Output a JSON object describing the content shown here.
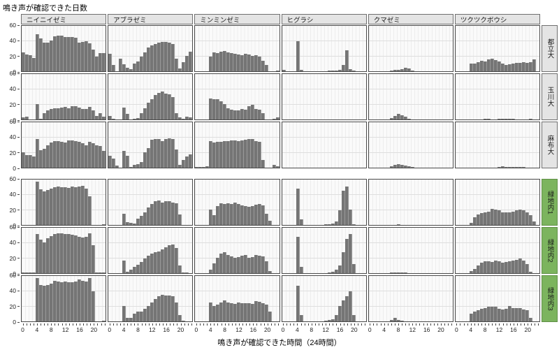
{
  "title": "鳴き声が確認できた日数",
  "x_axis_label": "鳴き声が確認できた時間（24時間）",
  "colors": {
    "bar": "#757575",
    "strip_gray": "#e4e4e4",
    "strip_green": "#7cb45e",
    "panel_bg": "#fafafa",
    "panel_border": "#4a4a4a"
  },
  "chart_data": {
    "type": "bar",
    "description": "Faceted histograms: days each cicada species' call was confirmed, per hour of day (24 hourly bins), at 6 sites",
    "facet_cols": [
      "ニイニイゼミ",
      "アブラゼミ",
      "ミンミンゼミ",
      "ヒグラシ",
      "クマゼミ",
      "ツクツクボウシ"
    ],
    "facet_rows": [
      {
        "label": "都立大",
        "group": "campus"
      },
      {
        "label": "玉川大",
        "group": "campus"
      },
      {
        "label": "麻布大",
        "group": "campus"
      },
      {
        "label": "緑地内1",
        "group": "greenspace"
      },
      {
        "label": "緑地内2",
        "group": "greenspace"
      },
      {
        "label": "緑地内3",
        "group": "greenspace"
      }
    ],
    "x_bins": 24,
    "x_ticks": [
      0,
      4,
      8,
      12,
      16,
      20
    ],
    "y_ticks": [
      60,
      40,
      20,
      0
    ],
    "ylim": [
      0,
      60
    ],
    "values": [
      [
        [
          25,
          22,
          21,
          18,
          49,
          43,
          38,
          38,
          41,
          46,
          47,
          47,
          45,
          45,
          45,
          44,
          38,
          39,
          40,
          37,
          29,
          19,
          24,
          24
        ],
        [
          23,
          8,
          0,
          17,
          9,
          5,
          3,
          10,
          13,
          19,
          25,
          31,
          34,
          36,
          38,
          39,
          39,
          38,
          36,
          17,
          4,
          12,
          20,
          26
        ],
        [
          0,
          0,
          0,
          0,
          19,
          25,
          24,
          26,
          27,
          25,
          24,
          23,
          22,
          21,
          23,
          22,
          20,
          21,
          19,
          14,
          8,
          0,
          0,
          1
        ],
        [
          2,
          0,
          0,
          0,
          40,
          2,
          0,
          0,
          0,
          0,
          0,
          0,
          0,
          1,
          1,
          1,
          2,
          8,
          28,
          3,
          1,
          0,
          0,
          0
        ],
        [
          0,
          0,
          0,
          0,
          0,
          0,
          1,
          2,
          2,
          3,
          5,
          4,
          1,
          0,
          0,
          0,
          0,
          0,
          0,
          0,
          0,
          0,
          0,
          0
        ],
        [
          0,
          0,
          0,
          0,
          10,
          10,
          12,
          14,
          13,
          16,
          17,
          15,
          13,
          10,
          8,
          9,
          10,
          11,
          11,
          12,
          11,
          12,
          16,
          0
        ]
      ],
      [
        [
          3,
          4,
          0,
          0,
          20,
          1,
          8,
          12,
          14,
          15,
          15,
          16,
          17,
          15,
          18,
          18,
          16,
          14,
          14,
          17,
          12,
          5,
          8,
          4
        ],
        [
          5,
          1,
          0,
          0,
          16,
          7,
          0,
          1,
          2,
          8,
          15,
          22,
          27,
          32,
          35,
          37,
          34,
          33,
          30,
          8,
          3,
          1,
          4,
          3
        ],
        [
          0,
          0,
          0,
          0,
          28,
          27,
          27,
          24,
          20,
          15,
          13,
          12,
          12,
          14,
          13,
          18,
          19,
          14,
          13,
          8,
          0,
          0,
          1,
          3
        ],
        [
          0,
          0,
          0,
          0,
          0,
          0,
          0,
          0,
          0,
          0,
          0,
          0,
          0,
          0,
          0,
          0,
          0,
          0,
          0,
          0,
          0,
          0,
          0,
          0
        ],
        [
          0,
          0,
          0,
          0,
          0,
          0,
          2,
          5,
          7,
          6,
          4,
          1,
          0,
          0,
          0,
          0,
          0,
          0,
          0,
          0,
          0,
          0,
          0,
          0
        ],
        [
          0,
          0,
          0,
          0,
          0,
          0,
          0,
          0,
          1,
          1,
          0,
          0,
          1,
          1,
          1,
          1,
          1,
          0,
          0,
          0,
          0,
          1,
          0,
          0
        ]
      ],
      [
        [
          20,
          17,
          17,
          15,
          38,
          23,
          25,
          30,
          33,
          35,
          35,
          34,
          33,
          36,
          36,
          35,
          34,
          32,
          30,
          34,
          32,
          30,
          29,
          22
        ],
        [
          16,
          12,
          3,
          0,
          22,
          16,
          1,
          4,
          5,
          7,
          20,
          26,
          37,
          38,
          38,
          35,
          38,
          39,
          38,
          24,
          4,
          10,
          15,
          18
        ],
        [
          1,
          1,
          1,
          2,
          35,
          33,
          34,
          34,
          35,
          35,
          36,
          36,
          35,
          36,
          37,
          38,
          38,
          35,
          34,
          10,
          0,
          0,
          4,
          2
        ],
        [
          0,
          0,
          0,
          0,
          0,
          0,
          0,
          0,
          0,
          0,
          0,
          0,
          0,
          0,
          0,
          0,
          0,
          0,
          0,
          0,
          0,
          0,
          0,
          0
        ],
        [
          0,
          0,
          0,
          0,
          0,
          0,
          2,
          4,
          5,
          4,
          3,
          2,
          1,
          0,
          0,
          0,
          0,
          0,
          0,
          0,
          0,
          0,
          0,
          0
        ],
        [
          0,
          0,
          0,
          0,
          0,
          0,
          0,
          0,
          0,
          0,
          0,
          0,
          1,
          2,
          1,
          1,
          1,
          1,
          1,
          1,
          0,
          0,
          0,
          0
        ]
      ],
      [
        [
          0,
          0,
          0,
          0,
          57,
          47,
          44,
          46,
          48,
          50,
          51,
          50,
          50,
          49,
          51,
          50,
          51,
          52,
          48,
          38,
          0,
          0,
          0,
          1
        ],
        [
          0,
          0,
          0,
          0,
          15,
          4,
          3,
          2,
          8,
          12,
          17,
          23,
          28,
          31,
          32,
          30,
          31,
          31,
          30,
          29,
          14,
          0,
          0,
          0
        ],
        [
          0,
          0,
          0,
          0,
          20,
          13,
          25,
          29,
          28,
          29,
          28,
          30,
          28,
          26,
          25,
          24,
          25,
          27,
          28,
          26,
          15,
          6,
          0,
          0
        ],
        [
          0,
          0,
          0,
          0,
          48,
          7,
          0,
          0,
          0,
          0,
          0,
          0,
          1,
          1,
          2,
          5,
          19,
          45,
          51,
          20,
          1,
          0,
          0,
          0
        ],
        [
          0,
          0,
          0,
          0,
          0,
          0,
          0,
          0,
          1,
          0,
          0,
          0,
          0,
          0,
          0,
          0,
          0,
          0,
          0,
          0,
          0,
          0,
          0,
          0
        ],
        [
          0,
          0,
          0,
          0,
          3,
          10,
          14,
          16,
          17,
          18,
          21,
          20,
          19,
          17,
          17,
          17,
          18,
          19,
          20,
          19,
          17,
          13,
          5,
          0
        ]
      ],
      [
        [
          1,
          1,
          1,
          1,
          52,
          44,
          41,
          46,
          49,
          52,
          53,
          53,
          52,
          52,
          51,
          50,
          48,
          47,
          48,
          53,
          37,
          1,
          1,
          1
        ],
        [
          0,
          0,
          0,
          0,
          17,
          2,
          5,
          8,
          11,
          15,
          19,
          23,
          26,
          28,
          29,
          31,
          34,
          37,
          38,
          33,
          10,
          1,
          1,
          0
        ],
        [
          0,
          0,
          0,
          0,
          5,
          13,
          20,
          26,
          28,
          24,
          22,
          20,
          21,
          23,
          24,
          20,
          21,
          24,
          23,
          22,
          16,
          3,
          0,
          0
        ],
        [
          0,
          0,
          0,
          0,
          48,
          8,
          0,
          0,
          0,
          0,
          0,
          0,
          0,
          1,
          2,
          5,
          10,
          28,
          45,
          52,
          12,
          0,
          0,
          0
        ],
        [
          0,
          0,
          0,
          0,
          0,
          0,
          1,
          1,
          1,
          1,
          1,
          0,
          0,
          0,
          0,
          0,
          0,
          0,
          0,
          0,
          0,
          0,
          0,
          0
        ],
        [
          0,
          0,
          0,
          0,
          3,
          6,
          10,
          14,
          16,
          16,
          15,
          17,
          16,
          14,
          15,
          16,
          17,
          18,
          19,
          17,
          12,
          2,
          0,
          0
        ]
      ],
      [
        [
          0,
          0,
          0,
          0,
          57,
          48,
          47,
          48,
          50,
          54,
          53,
          52,
          53,
          52,
          52,
          53,
          55,
          54,
          53,
          57,
          40,
          0,
          0,
          1
        ],
        [
          0,
          0,
          0,
          0,
          20,
          5,
          5,
          10,
          13,
          13,
          17,
          20,
          25,
          30,
          33,
          35,
          34,
          34,
          33,
          25,
          8,
          1,
          0,
          0
        ],
        [
          0,
          0,
          0,
          0,
          25,
          20,
          22,
          25,
          28,
          25,
          24,
          23,
          25,
          24,
          24,
          24,
          23,
          27,
          26,
          24,
          22,
          13,
          0,
          0
        ],
        [
          0,
          0,
          0,
          0,
          47,
          8,
          0,
          0,
          0,
          0,
          0,
          0,
          1,
          2,
          3,
          8,
          20,
          28,
          33,
          40,
          8,
          0,
          0,
          0
        ],
        [
          0,
          0,
          0,
          0,
          0,
          0,
          2,
          5,
          2,
          1,
          0,
          0,
          0,
          0,
          0,
          0,
          0,
          0,
          0,
          0,
          0,
          0,
          0,
          0
        ],
        [
          0,
          0,
          0,
          0,
          10,
          13,
          15,
          17,
          18,
          19,
          19,
          19,
          17,
          16,
          17,
          20,
          18,
          18,
          18,
          16,
          15,
          5,
          0,
          0
        ]
      ]
    ]
  }
}
